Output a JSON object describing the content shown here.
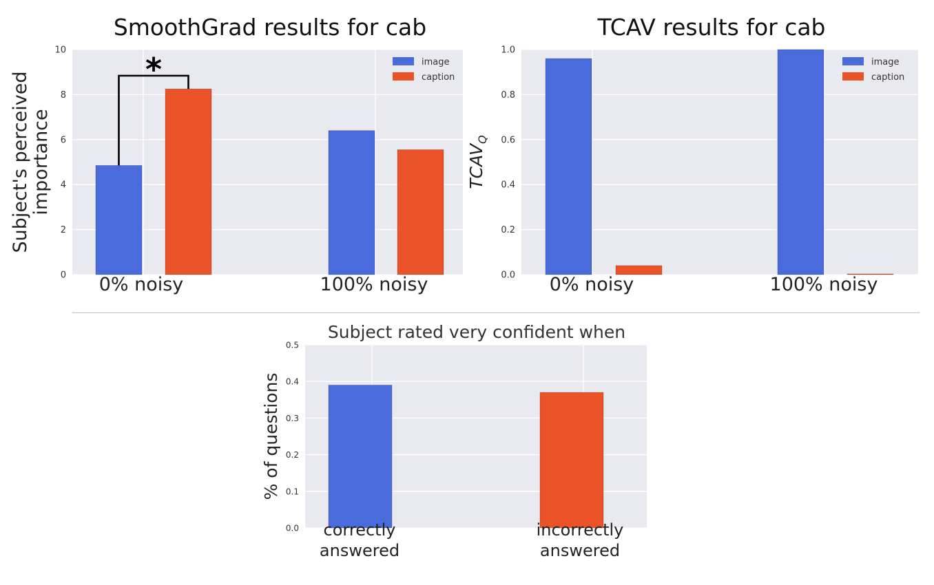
{
  "colors": {
    "image": "#4a6bdb",
    "caption": "#e95327",
    "plot_bg": "#e9e9f0",
    "grid": "#ffffff"
  },
  "chart_data": [
    {
      "type": "bar",
      "title": "SmoothGrad results for cab",
      "ylabel": "Subject's perceived importance",
      "categories": [
        "0% noisy",
        "100% noisy"
      ],
      "series": [
        {
          "name": "image",
          "values": [
            4.85,
            6.4
          ]
        },
        {
          "name": "caption",
          "values": [
            8.25,
            5.55
          ]
        }
      ],
      "ylim": [
        0,
        10
      ],
      "yticks": [
        "0",
        "2",
        "4",
        "6",
        "8",
        "10"
      ],
      "grid": true,
      "legend": "top-right",
      "annotation": "*"
    },
    {
      "type": "bar",
      "title": "TCAV results for cab",
      "ylabel": "TCAV_Q",
      "categories": [
        "0% noisy",
        "100% noisy"
      ],
      "series": [
        {
          "name": "image",
          "values": [
            0.96,
            1.0
          ]
        },
        {
          "name": "caption",
          "values": [
            0.04,
            0.0
          ]
        }
      ],
      "ylim": [
        0,
        1.0
      ],
      "yticks": [
        "0.0",
        "0.2",
        "0.4",
        "0.6",
        "0.8",
        "1.0"
      ],
      "grid": true,
      "legend": "top-right"
    },
    {
      "type": "bar",
      "title": "Subject rated very confident when",
      "ylabel": "% of questions",
      "categories": [
        "correctly answered",
        "incorrectly answered"
      ],
      "values": [
        0.39,
        0.37
      ],
      "ylim": [
        0,
        0.5
      ],
      "yticks": [
        "0.0",
        "0.1",
        "0.2",
        "0.3",
        "0.4",
        "0.5"
      ],
      "grid": true
    }
  ]
}
